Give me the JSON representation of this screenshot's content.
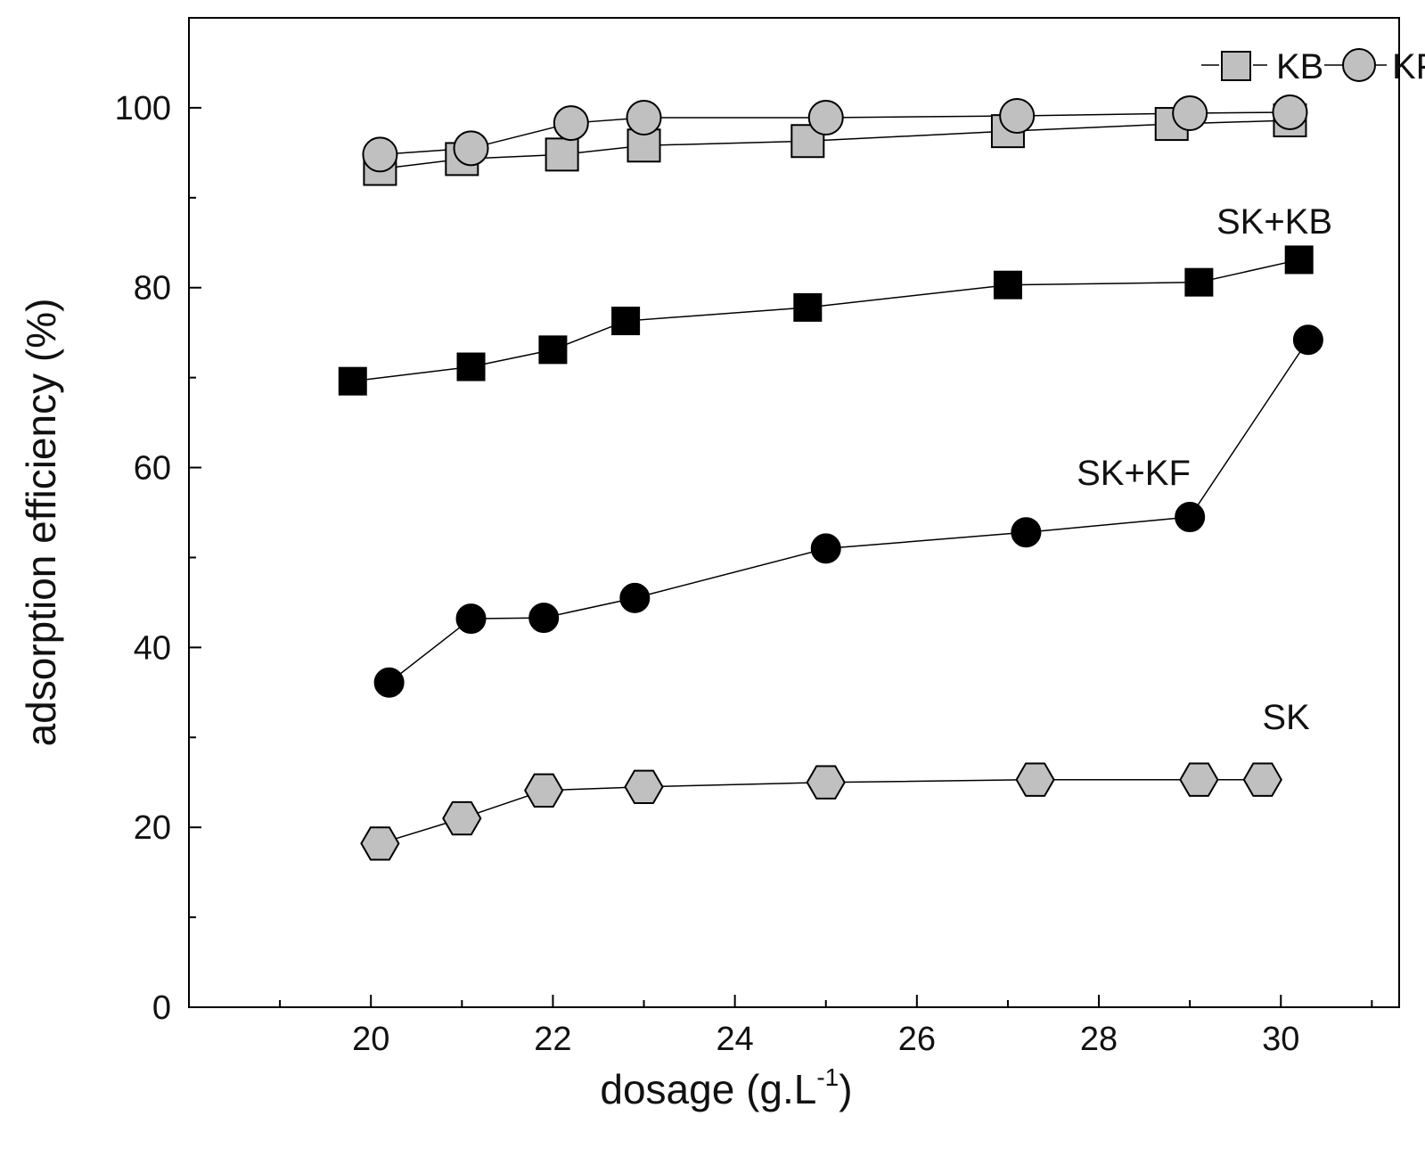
{
  "chart_data": {
    "type": "scatter",
    "title": "",
    "xlabel_main": "dosage (g.L",
    "xlabel_sup": "-1",
    "xlabel_tail": ")",
    "ylabel": "adsorption efficiency (%)",
    "xlim": [
      18,
      31.3
    ],
    "ylim": [
      0,
      110
    ],
    "x_ticks": [
      "20",
      "22",
      "24",
      "26",
      "28",
      "30"
    ],
    "y_ticks": [
      "0",
      "20",
      "40",
      "60",
      "80",
      "100"
    ],
    "grid": false,
    "legend": {
      "position": "top-right",
      "entries": [
        "KB",
        "KF"
      ]
    },
    "series": [
      {
        "name": "KB",
        "marker": "square",
        "fill": "#c0c0c0",
        "x": [
          20.1,
          21.0,
          22.1,
          23.0,
          24.8,
          27.0,
          28.8,
          30.1
        ],
        "y": [
          93.2,
          94.3,
          94.8,
          95.8,
          96.3,
          97.4,
          98.2,
          98.6
        ]
      },
      {
        "name": "KF",
        "marker": "circle",
        "fill": "#c0c0c0",
        "x": [
          20.1,
          21.1,
          22.2,
          23.0,
          25.0,
          27.1,
          29.0,
          30.1
        ],
        "y": [
          94.8,
          95.5,
          98.3,
          98.9,
          98.9,
          99.1,
          99.4,
          99.5
        ]
      },
      {
        "name": "SK+KB",
        "label": "SK+KB",
        "marker": "square",
        "fill": "#000000",
        "x": [
          19.8,
          21.1,
          22.0,
          22.8,
          24.8,
          27.0,
          29.1,
          30.2
        ],
        "y": [
          69.6,
          71.2,
          73.1,
          76.3,
          77.8,
          80.3,
          80.6,
          83.1
        ]
      },
      {
        "name": "SK+KF",
        "label": "SK+KF",
        "marker": "circle",
        "fill": "#000000",
        "x": [
          20.2,
          21.1,
          21.9,
          22.9,
          25.0,
          27.2,
          29.0,
          30.3
        ],
        "y": [
          36.1,
          43.2,
          43.3,
          45.5,
          51.0,
          52.8,
          54.5,
          74.2
        ]
      },
      {
        "name": "SK",
        "label": "SK",
        "marker": "hexagon",
        "fill": "#c0c0c0",
        "x": [
          20.1,
          21.0,
          21.9,
          23.0,
          25.0,
          27.3,
          29.1,
          29.8
        ],
        "y": [
          18.2,
          21.0,
          24.1,
          24.5,
          25.0,
          25.3,
          25.3,
          25.3
        ]
      }
    ]
  }
}
